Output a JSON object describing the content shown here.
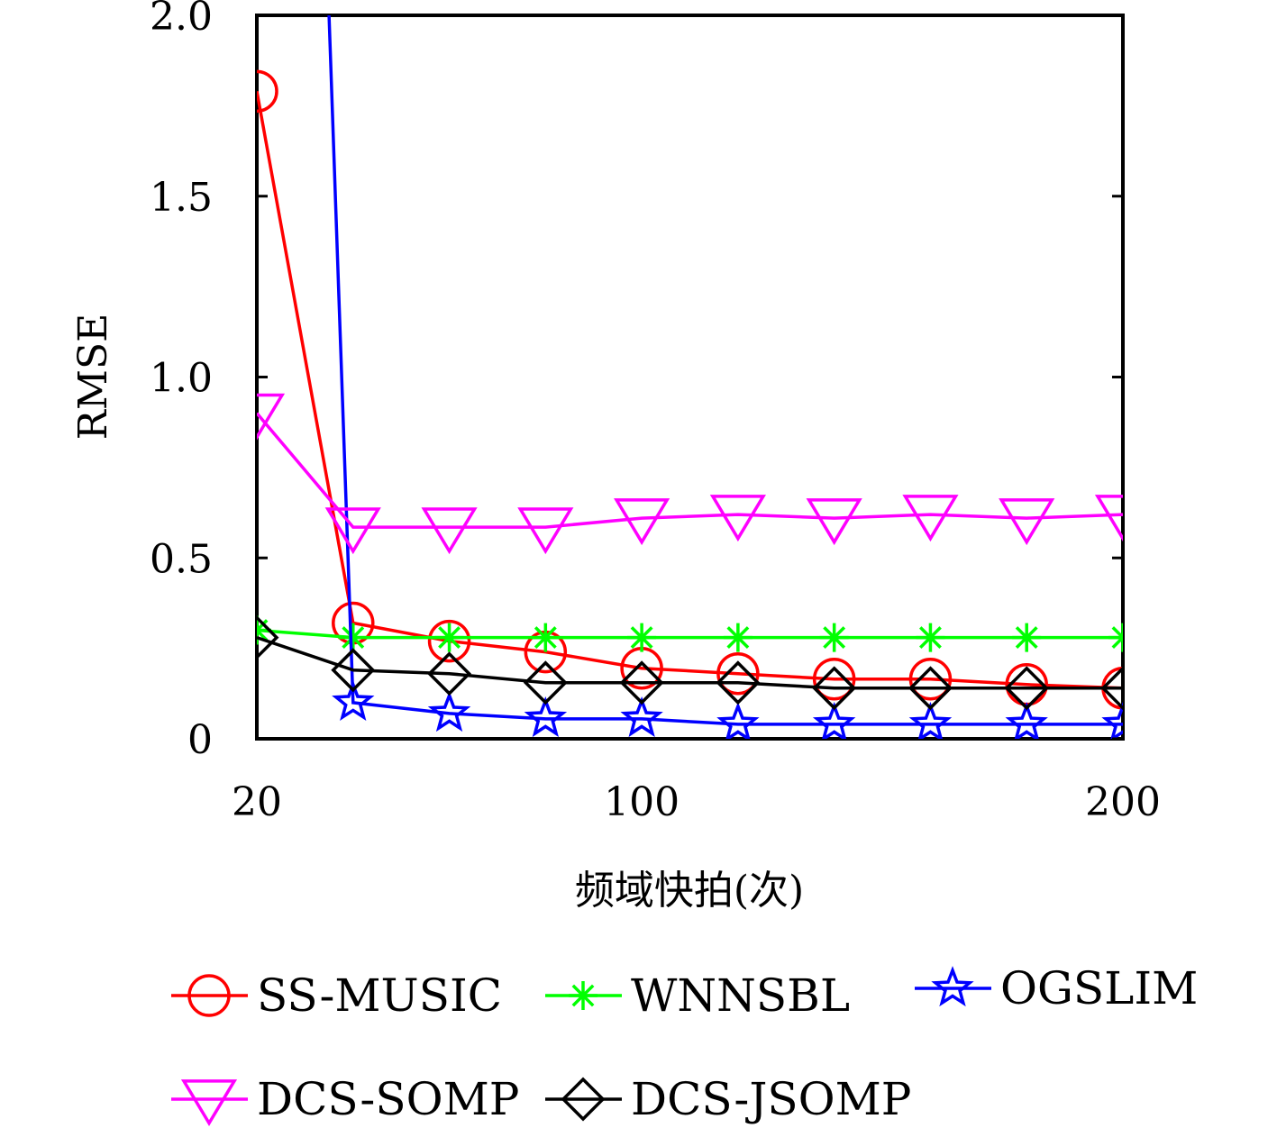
{
  "chart_data": {
    "type": "line",
    "title": "",
    "xlabel": "频域快拍(次)",
    "ylabel": "RMSE",
    "x": [
      20,
      40,
      60,
      80,
      100,
      120,
      140,
      160,
      180,
      200
    ],
    "xlim": [
      20,
      200
    ],
    "ylim": [
      0,
      2.0
    ],
    "xticks": [
      20,
      100,
      200
    ],
    "xtick_labels": [
      "20",
      "100",
      "200"
    ],
    "yticks": [
      0,
      0.5,
      1.0,
      1.5,
      2.0
    ],
    "ytick_labels": [
      "0",
      "0.5",
      "1.0",
      "1.5",
      "2.0"
    ],
    "grid": false,
    "legend_position": "bottom",
    "series": [
      {
        "name": "SS-MUSIC",
        "color": "#ff0000",
        "marker": "circle",
        "points": [
          [
            20,
            1.79
          ],
          [
            40,
            0.32
          ],
          [
            60,
            0.27
          ],
          [
            80,
            0.24
          ],
          [
            100,
            0.195
          ],
          [
            120,
            0.18
          ],
          [
            140,
            0.165
          ],
          [
            160,
            0.165
          ],
          [
            180,
            0.15
          ],
          [
            200,
            0.14
          ]
        ]
      },
      {
        "name": "WNNSBL",
        "color": "#00ff00",
        "marker": "asterisk",
        "points": [
          [
            20,
            0.3
          ],
          [
            40,
            0.28
          ],
          [
            60,
            0.28
          ],
          [
            80,
            0.28
          ],
          [
            100,
            0.28
          ],
          [
            120,
            0.28
          ],
          [
            140,
            0.28
          ],
          [
            160,
            0.28
          ],
          [
            180,
            0.28
          ],
          [
            200,
            0.28
          ]
        ]
      },
      {
        "name": "OGSLIM",
        "color": "#0000ff",
        "marker": "star",
        "points": [
          [
            35,
            2.0
          ],
          [
            40,
            0.1
          ],
          [
            60,
            0.07
          ],
          [
            80,
            0.055
          ],
          [
            100,
            0.055
          ],
          [
            120,
            0.04
          ],
          [
            140,
            0.04
          ],
          [
            160,
            0.04
          ],
          [
            180,
            0.04
          ],
          [
            200,
            0.04
          ]
        ]
      },
      {
        "name": "DCS-SOMP",
        "color": "#ff00ff",
        "marker": "triangle-down",
        "points": [
          [
            20,
            0.9
          ],
          [
            40,
            0.585
          ],
          [
            60,
            0.585
          ],
          [
            80,
            0.585
          ],
          [
            100,
            0.61
          ],
          [
            120,
            0.62
          ],
          [
            140,
            0.61
          ],
          [
            160,
            0.62
          ],
          [
            180,
            0.61
          ],
          [
            200,
            0.62
          ]
        ]
      },
      {
        "name": "DCS-JSOMP",
        "color": "#000000",
        "marker": "diamond",
        "points": [
          [
            20,
            0.28
          ],
          [
            40,
            0.19
          ],
          [
            60,
            0.18
          ],
          [
            80,
            0.155
          ],
          [
            100,
            0.155
          ],
          [
            120,
            0.155
          ],
          [
            140,
            0.14
          ],
          [
            160,
            0.14
          ],
          [
            180,
            0.14
          ],
          [
            200,
            0.14
          ]
        ]
      }
    ]
  }
}
